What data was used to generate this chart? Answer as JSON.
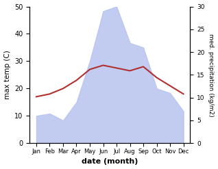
{
  "months": [
    "Jan",
    "Feb",
    "Mar",
    "Apr",
    "May",
    "Jun",
    "Jul",
    "Aug",
    "Sep",
    "Oct",
    "Nov",
    "Dec"
  ],
  "month_positions": [
    1,
    2,
    3,
    4,
    5,
    6,
    7,
    8,
    9,
    10,
    11,
    12
  ],
  "max_temp": [
    17.0,
    18.0,
    20.0,
    23.0,
    27.0,
    28.5,
    27.5,
    26.5,
    28.0,
    24.0,
    21.0,
    18.0
  ],
  "precipitation": [
    6.0,
    6.5,
    5.0,
    9.0,
    18.0,
    29.0,
    30.0,
    22.0,
    21.0,
    12.0,
    11.0,
    7.0
  ],
  "temp_color": "#b03030",
  "precip_fill_color": "#b8c4ee",
  "temp_ylim": [
    0,
    50
  ],
  "temp_yticks": [
    0,
    10,
    20,
    30,
    40,
    50
  ],
  "precip_ylim": [
    0,
    30
  ],
  "precip_yticks": [
    0,
    5,
    10,
    15,
    20,
    25,
    30
  ],
  "xlabel": "date (month)",
  "ylabel_left": "max temp (C)",
  "ylabel_right": "med. precipitation (kg/m2)",
  "bg_color": "#ffffff"
}
